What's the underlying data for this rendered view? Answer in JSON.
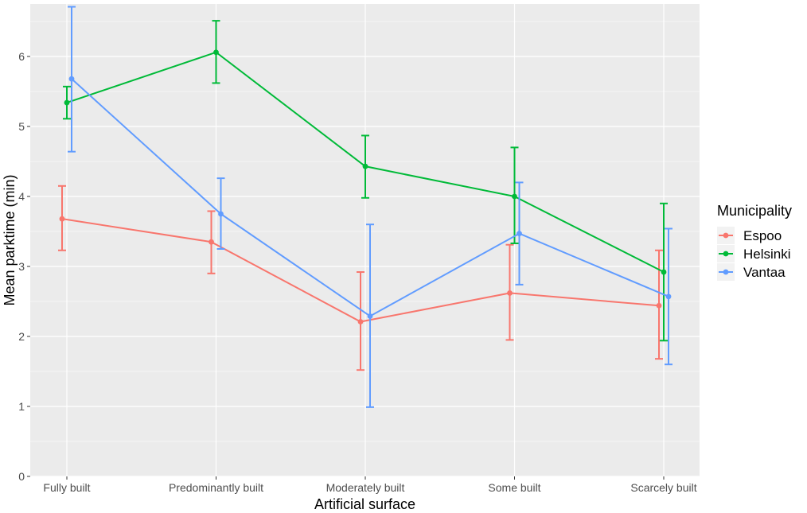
{
  "chart_data": {
    "type": "line",
    "title": "",
    "xlabel": "Artificial surface",
    "ylabel": "Mean parktime (min)",
    "ylim": [
      0,
      6.75
    ],
    "yticks": [
      0,
      1,
      2,
      3,
      4,
      5,
      6
    ],
    "grid": true,
    "legend_title": "Municipality",
    "legend_position": "right",
    "categories": [
      "Fully built",
      "Predominantly built",
      "Moderately built",
      "Some built",
      "Scarcely built"
    ],
    "series": [
      {
        "name": "Espoo",
        "color": "#F8766D",
        "values": [
          3.68,
          3.35,
          2.21,
          2.62,
          2.44
        ],
        "lower": [
          3.23,
          2.9,
          1.52,
          1.95,
          1.68
        ],
        "upper": [
          4.15,
          3.79,
          2.92,
          3.31,
          3.23
        ]
      },
      {
        "name": "Helsinki",
        "color": "#00BA38",
        "values": [
          5.34,
          6.06,
          4.43,
          4.0,
          2.92
        ],
        "lower": [
          5.11,
          5.62,
          3.98,
          3.33,
          1.94
        ],
        "upper": [
          5.57,
          6.51,
          4.87,
          4.7,
          3.9
        ]
      },
      {
        "name": "Vantaa",
        "color": "#619CFF",
        "values": [
          5.68,
          3.75,
          2.29,
          3.47,
          2.57
        ],
        "lower": [
          4.64,
          3.25,
          0.99,
          2.74,
          1.6
        ],
        "upper": [
          6.71,
          4.26,
          3.6,
          4.2,
          3.54
        ]
      }
    ]
  }
}
